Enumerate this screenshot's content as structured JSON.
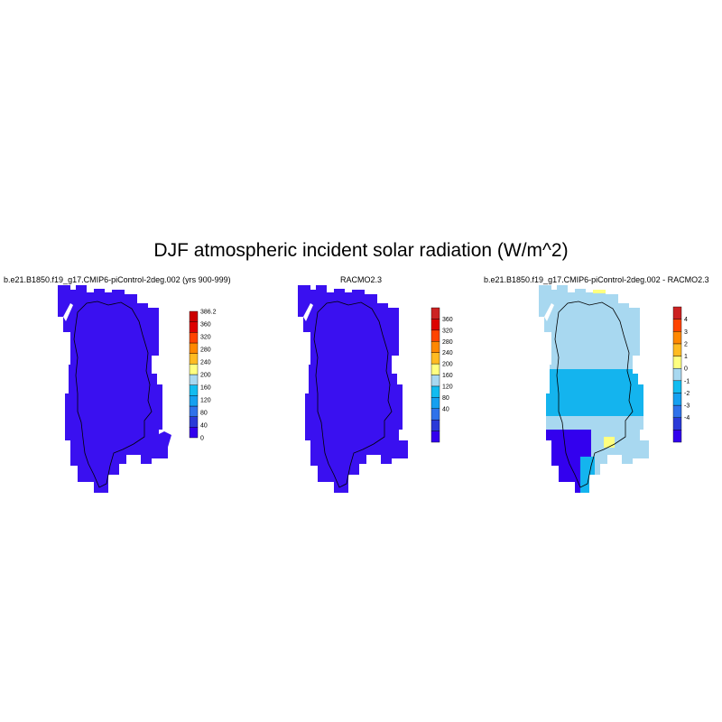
{
  "title": "DJF atmospheric incident solar radiation (W/m^2)",
  "panels": [
    {
      "title": "b.e21.B1850.f19_g17.CMIP6-piControl-2deg.002 (yrs 900-999)",
      "colorbar": {
        "colors": [
          "#3300ee",
          "#2a3ad8",
          "#2f72ea",
          "#15a0f0",
          "#12bcf0",
          "#a8d8f0",
          "#ffff80",
          "#ffbb22",
          "#ff8800",
          "#ff4400",
          "#dd0000",
          "#cc0000"
        ],
        "labels": [
          "386.2",
          "360",
          "320",
          "280",
          "240",
          "200",
          "160",
          "120",
          "80",
          "40",
          "0"
        ]
      }
    },
    {
      "title": "RACMO2.3",
      "colorbar": {
        "colors": [
          "#3300ee",
          "#2a3ad8",
          "#2f72ea",
          "#15a0f0",
          "#12bcf0",
          "#a8d8f0",
          "#ffff80",
          "#ffbb22",
          "#ff8800",
          "#ff4400",
          "#dd0000",
          "#cc2222"
        ],
        "labels": [
          "360",
          "320",
          "280",
          "240",
          "200",
          "160",
          "120",
          "80",
          "40"
        ]
      }
    },
    {
      "title": "b.e21.B1850.f19_g17.CMIP6-piControl-2deg.002 - RACMO2.3",
      "colorbar": {
        "colors": [
          "#3300ee",
          "#2a3ad8",
          "#2f72ea",
          "#15a0f0",
          "#12bcf0",
          "#a8d8f0",
          "#ffff80",
          "#ffbb22",
          "#ff8800",
          "#ff4400",
          "#cc2222"
        ],
        "labels": [
          "4",
          "3",
          "2",
          "1",
          "0",
          "-1",
          "-2",
          "-3",
          "-4"
        ]
      }
    }
  ],
  "map_colors": {
    "uniform": "#3a10f0",
    "light_blue": "#a8d8f0",
    "mid_blue": "#14b4ee",
    "dark_blue": "#3300ee",
    "yellow": "#ffff80"
  }
}
